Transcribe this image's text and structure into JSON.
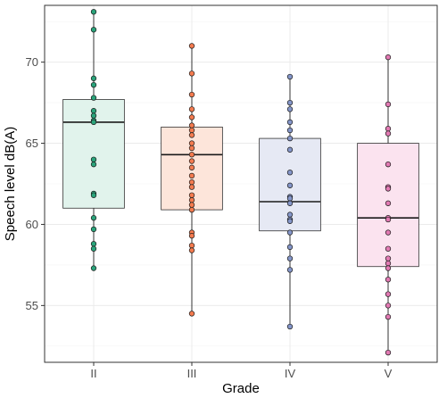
{
  "chart_data": {
    "type": "boxplot",
    "xlabel": "Grade",
    "ylabel": "Speech level dB(A)",
    "ylim": [
      51.5,
      73.5
    ],
    "yticks": [
      55,
      60,
      65,
      70
    ],
    "grid": true,
    "categories": [
      "II",
      "III",
      "IV",
      "V"
    ],
    "series": [
      {
        "category": "II",
        "fill": "#e1f3ec",
        "point_color": "#2aa37a",
        "box": {
          "min": 57.3,
          "q1": 61.0,
          "median": 66.3,
          "q3": 67.7,
          "max": 73.1
        },
        "points": [
          73.1,
          72.0,
          69.0,
          68.6,
          67.8,
          67.0,
          66.7,
          66.4,
          66.3,
          64.0,
          63.7,
          61.9,
          61.8,
          60.4,
          59.7,
          58.8,
          58.5,
          57.3
        ]
      },
      {
        "category": "III",
        "fill": "#fde5da",
        "point_color": "#f47b4f",
        "box": {
          "min": 54.5,
          "q1": 60.9,
          "median": 64.3,
          "q3": 66.0,
          "max": 71.0
        },
        "points": [
          71.0,
          69.3,
          68.0,
          67.1,
          66.6,
          66.1,
          65.8,
          65.5,
          65.0,
          64.7,
          64.3,
          63.9,
          63.5,
          63.0,
          62.6,
          62.3,
          61.8,
          61.5,
          61.2,
          60.9,
          59.5,
          59.3,
          58.7,
          58.4,
          54.5
        ]
      },
      {
        "category": "IV",
        "fill": "#e6e9f4",
        "point_color": "#8596c9",
        "box": {
          "min": 53.7,
          "q1": 59.6,
          "median": 61.4,
          "q3": 65.3,
          "max": 69.1
        },
        "points": [
          69.1,
          67.5,
          67.1,
          66.3,
          65.8,
          65.3,
          64.6,
          63.2,
          62.4,
          61.7,
          61.6,
          61.3,
          60.6,
          60.3,
          60.2,
          59.5,
          58.6,
          57.9,
          57.2,
          53.7
        ]
      },
      {
        "category": "V",
        "fill": "#fbe3ef",
        "point_color": "#e27ab3",
        "box": {
          "min": 52.1,
          "q1": 57.4,
          "median": 60.4,
          "q3": 65.0,
          "max": 70.3
        },
        "points": [
          70.3,
          67.4,
          65.9,
          65.6,
          63.7,
          62.3,
          62.2,
          61.3,
          60.4,
          60.3,
          59.5,
          58.5,
          57.9,
          57.6,
          57.3,
          56.6,
          55.7,
          55.0,
          54.3,
          52.1
        ]
      }
    ]
  }
}
